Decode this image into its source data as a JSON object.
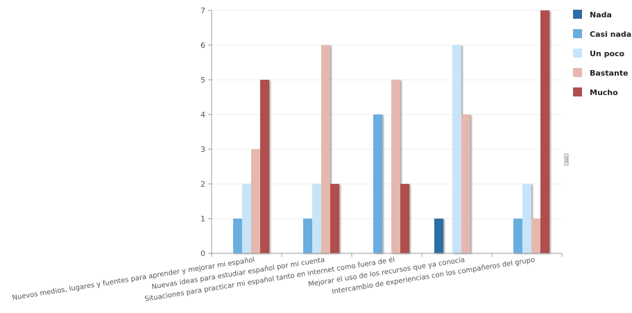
{
  "chart_data": {
    "type": "bar",
    "categories": [
      "Nuevos medios, lugares y fuentes para aprender y mejorar mi español",
      "Nuevas ideas para estudiar español por mi cuenta",
      "Situaciones para practicar mi español tanto en internet como fuera de él",
      "Mejorar el uso de los recursos que ya conocía",
      "Intercambio de experiencias con los compañeros del grupo"
    ],
    "series": [
      {
        "name": "Nada",
        "color": "#2e6ea6",
        "values": [
          0,
          0,
          0,
          1,
          0
        ]
      },
      {
        "name": "Casi nada",
        "color": "#6aaee0",
        "values": [
          1,
          1,
          4,
          0,
          1
        ]
      },
      {
        "name": "Un poco",
        "color": "#c8e4f8",
        "values": [
          2,
          2,
          0,
          6,
          2
        ]
      },
      {
        "name": "Bastante",
        "color": "#e4b8ae",
        "values": [
          3,
          6,
          5,
          4,
          1
        ]
      },
      {
        "name": "Mucho",
        "color": "#b04e4e",
        "values": [
          5,
          2,
          2,
          0,
          7
        ]
      }
    ],
    "yticks": [
      "0",
      "1",
      "2",
      "3",
      "4",
      "5",
      "6",
      "7"
    ],
    "ylim": [
      0,
      7
    ],
    "grid": true,
    "legend": "right",
    "title": "",
    "xlabel": "",
    "ylabel": ""
  }
}
